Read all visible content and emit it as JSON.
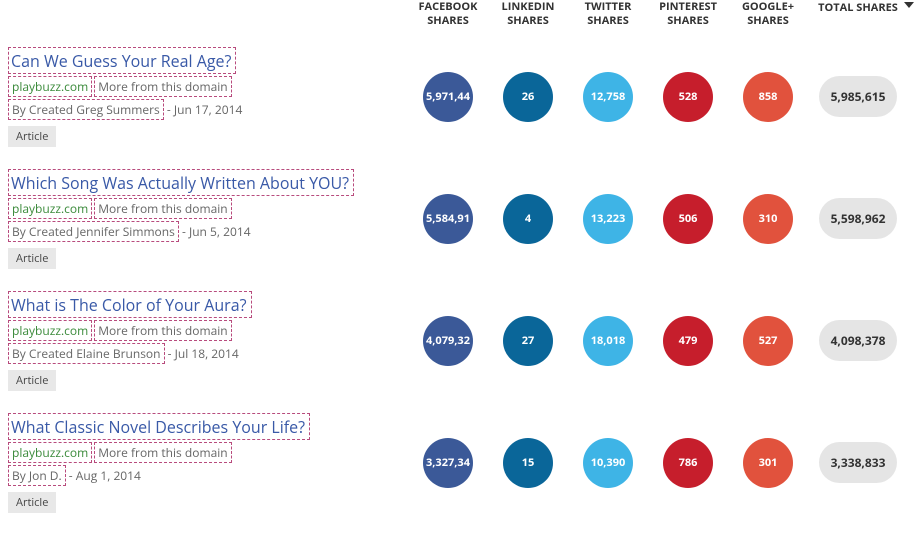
{
  "columns": {
    "fb": "FACEBOOK SHARES",
    "li": "LINKEDIN SHARES",
    "tw": "TWITTER SHARES",
    "pn": "PINTEREST SHARES",
    "gp": "GOOGLE+ SHARES",
    "total": "TOTAL SHARES"
  },
  "colors": {
    "facebook": "#3b5998",
    "linkedin": "#0a6699",
    "twitter": "#3eb4e6",
    "pinterest": "#c61e2c",
    "googleplus": "#e1523d",
    "total_pill": "#e5e5e5",
    "title_link": "#3959a7",
    "domain_link": "#3a8a3a",
    "dashed_border": "#b84b7d"
  },
  "labels": {
    "more_domain": "More from this domain",
    "badge": "Article"
  },
  "rows": [
    {
      "title": "Can We Guess Your Real Age?",
      "domain": "playbuzz.com",
      "byline": "By Created Greg Summers",
      "date": "Jun 17, 2014",
      "fb": "5,971,44",
      "li": "26",
      "tw": "12,758",
      "pn": "528",
      "gp": "858",
      "total": "5,985,615"
    },
    {
      "title": "Which Song Was Actually Written About YOU?",
      "domain": "playbuzz.com",
      "byline": "By Created Jennifer Simmons",
      "date": "Jun 5, 2014",
      "fb": "5,584,91",
      "li": "4",
      "tw": "13,223",
      "pn": "506",
      "gp": "310",
      "total": "5,598,962"
    },
    {
      "title": "What is The Color of Your Aura?",
      "domain": "playbuzz.com",
      "byline": "By Created Elaine Brunson",
      "date": "Jul 18, 2014",
      "fb": "4,079,32",
      "li": "27",
      "tw": "18,018",
      "pn": "479",
      "gp": "527",
      "total": "4,098,378"
    },
    {
      "title": "What Classic Novel Describes Your Life?",
      "domain": "playbuzz.com",
      "byline": "By Jon D.",
      "date": "Aug 1, 2014",
      "fb": "3,327,34",
      "li": "15",
      "tw": "10,390",
      "pn": "786",
      "gp": "301",
      "total": "3,338,833"
    }
  ]
}
